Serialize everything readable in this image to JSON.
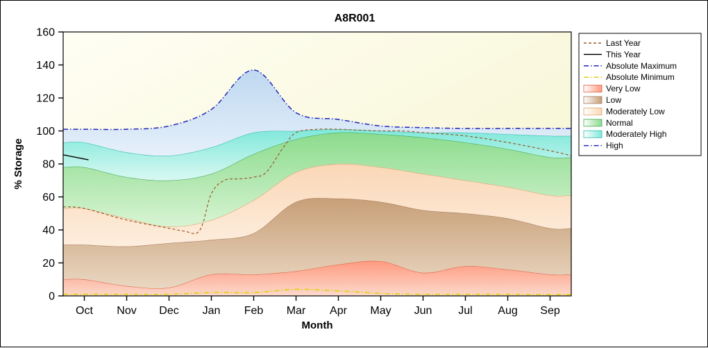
{
  "title": "A8R001",
  "x_axis": {
    "label": "Month"
  },
  "y_axis": {
    "label": "% Storage",
    "min": 0,
    "max": 160,
    "step": 20
  },
  "legend": {
    "items": [
      {
        "label": "Last Year",
        "type": "line",
        "color": "#9c5a28",
        "dash": "4 3"
      },
      {
        "label": "This Year",
        "type": "line",
        "color": "#000000",
        "dash": ""
      },
      {
        "label": "Absolute Maximum",
        "type": "line",
        "color": "#2323bb",
        "dash": "7 3 1.5 3"
      },
      {
        "label": "Absolute Minimum",
        "type": "line",
        "color": "#e0d20a",
        "dash": "7 3 1.5 3"
      },
      {
        "label": "Very Low",
        "type": "fill",
        "color": "#ff9a80",
        "edge": "#df5f43"
      },
      {
        "label": "Low",
        "type": "fill",
        "color": "#c79f77",
        "edge": "#a4795a"
      },
      {
        "label": "Moderately Low",
        "type": "fill",
        "color": "#fad7b6",
        "edge": "#dda372"
      },
      {
        "label": "Normal",
        "type": "fill",
        "color": "#8bdb8d",
        "edge": "#42a854"
      },
      {
        "label": "Moderately High",
        "type": "fill",
        "color": "#7fe8da",
        "edge": "#2eb9ab"
      },
      {
        "label": "High",
        "type": "line",
        "color": "#2323bb",
        "dash": "7 3 1.5 3"
      }
    ]
  },
  "chart_data": {
    "type": "area",
    "x_range": [
      -0.5,
      11.5
    ],
    "categories": [
      "Oct",
      "Nov",
      "Dec",
      "Jan",
      "Feb",
      "Mar",
      "Apr",
      "May",
      "Jun",
      "Jul",
      "Aug",
      "Sep"
    ],
    "ylim": [
      0,
      160
    ],
    "plot_background": {
      "from": "#fffef4",
      "to": "#f5f4cc"
    },
    "bands": [
      {
        "name": "Very Low",
        "upper": [
          10,
          6,
          5,
          13,
          13,
          15,
          19,
          21,
          14,
          18,
          16,
          13
        ],
        "edge": "#df5f43",
        "fill_top": "#ff9a80",
        "fill_bottom": "#fcd9cb"
      },
      {
        "name": "Low",
        "upper": [
          31,
          30,
          32,
          34,
          38,
          57,
          59,
          57,
          52,
          50,
          47,
          41
        ],
        "edge": "#a4795a",
        "fill_top": "#c79f77",
        "fill_bottom": "#ead7c2"
      },
      {
        "name": "Moderately Low",
        "upper": [
          53,
          47,
          42,
          46,
          58,
          75,
          80,
          78,
          74,
          70,
          66,
          61
        ],
        "edge": "#dda372",
        "fill_top": "#fad7b6",
        "fill_bottom": "#fdeede"
      },
      {
        "name": "Normal",
        "upper": [
          78,
          72,
          70,
          74,
          86,
          95,
          99,
          98,
          96,
          93,
          89,
          84
        ],
        "edge": "#42a854",
        "fill_top": "#8bdb8d",
        "fill_bottom": "#d8f4d3"
      },
      {
        "name": "Moderately High",
        "upper": [
          93,
          87,
          85,
          90,
          99,
          100,
          101,
          100,
          99,
          99,
          98,
          97
        ],
        "edge": "#2eb9ab",
        "fill_top": "#7fe8da",
        "fill_bottom": "#d9f8f2"
      },
      {
        "name": "High",
        "upper": [
          101,
          101,
          103,
          113,
          137,
          111,
          107,
          103,
          102,
          101.5,
          101.5,
          101.5
        ],
        "edge": null,
        "fill_top": "#bed8f0",
        "fill_bottom": "#e6f0fa"
      }
    ],
    "lines": [
      {
        "name": "Absolute Minimum",
        "values": [
          1,
          1,
          1,
          2,
          2,
          4,
          3,
          1.5,
          1,
          1,
          1,
          0.8
        ],
        "color": "#e0d20a",
        "dash": "7 3 1.5 3",
        "width": 1.7
      },
      {
        "name": "Last Year",
        "x": [
          -0.5,
          0,
          1,
          2,
          2.4,
          2.65,
          2.8,
          3.0,
          3.3,
          3.7,
          4.0,
          4.3,
          4.7,
          5.0,
          5.5,
          6,
          6.5,
          7,
          7.5,
          8,
          9,
          10,
          11,
          11.5
        ],
        "values": [
          54,
          53,
          46,
          41,
          39,
          38,
          44,
          62,
          70,
          71,
          72,
          75,
          90,
          99,
          101,
          101,
          100.5,
          100,
          100,
          99,
          97,
          93,
          88,
          85
        ],
        "color": "#9c5a28",
        "dash": "4 3",
        "width": 1.2
      },
      {
        "name": "This Year",
        "x": [
          -0.5,
          -0.2,
          0.1
        ],
        "values": [
          85.5,
          84,
          82.5
        ],
        "color": "#000000",
        "dash": "",
        "width": 1.4
      },
      {
        "name": "Absolute Maximum",
        "values": [
          101,
          101,
          103,
          113,
          137,
          111,
          107,
          103,
          102,
          101.5,
          101.5,
          101.5
        ],
        "color": "#2323bb",
        "dash": "7 3 1.5 3",
        "width": 1.5
      }
    ]
  }
}
